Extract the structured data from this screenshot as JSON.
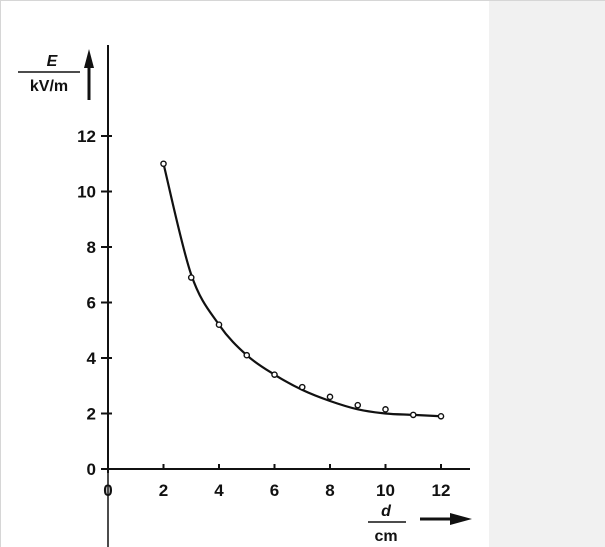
{
  "chart_data": {
    "type": "scatter",
    "title": "",
    "xlabel": {
      "symbol": "d",
      "unit": "cm"
    },
    "ylabel": {
      "symbol": "E",
      "unit": "kV/m"
    },
    "xlim": [
      0,
      12
    ],
    "ylim": [
      0,
      12
    ],
    "x_ticks": [
      0,
      2,
      4,
      6,
      8,
      10,
      12
    ],
    "y_ticks": [
      0,
      2,
      4,
      6,
      8,
      10,
      12
    ],
    "x_tick_labels": [
      "0",
      "2",
      "4",
      "6",
      "8",
      "10",
      "12"
    ],
    "y_tick_labels": [
      "0",
      "2",
      "4",
      "6",
      "8",
      "10",
      "12"
    ],
    "grid": false,
    "legend": "none",
    "series": [
      {
        "x": [
          2,
          3,
          4,
          5,
          6,
          7,
          8,
          9,
          10,
          11,
          12
        ],
        "y": [
          11.0,
          6.9,
          5.2,
          4.1,
          3.4,
          2.95,
          2.6,
          2.3,
          2.15,
          1.95,
          1.9
        ]
      }
    ],
    "fit_curve": {
      "x": [
        2,
        3,
        4,
        5,
        6,
        7,
        8,
        9,
        10,
        11,
        12
      ],
      "y": [
        11.0,
        7.0,
        5.2,
        4.1,
        3.4,
        2.85,
        2.45,
        2.15,
        2.0,
        1.95,
        1.9
      ]
    },
    "colors": {
      "ink": "#111111",
      "panel": "#f1f1f1"
    }
  }
}
